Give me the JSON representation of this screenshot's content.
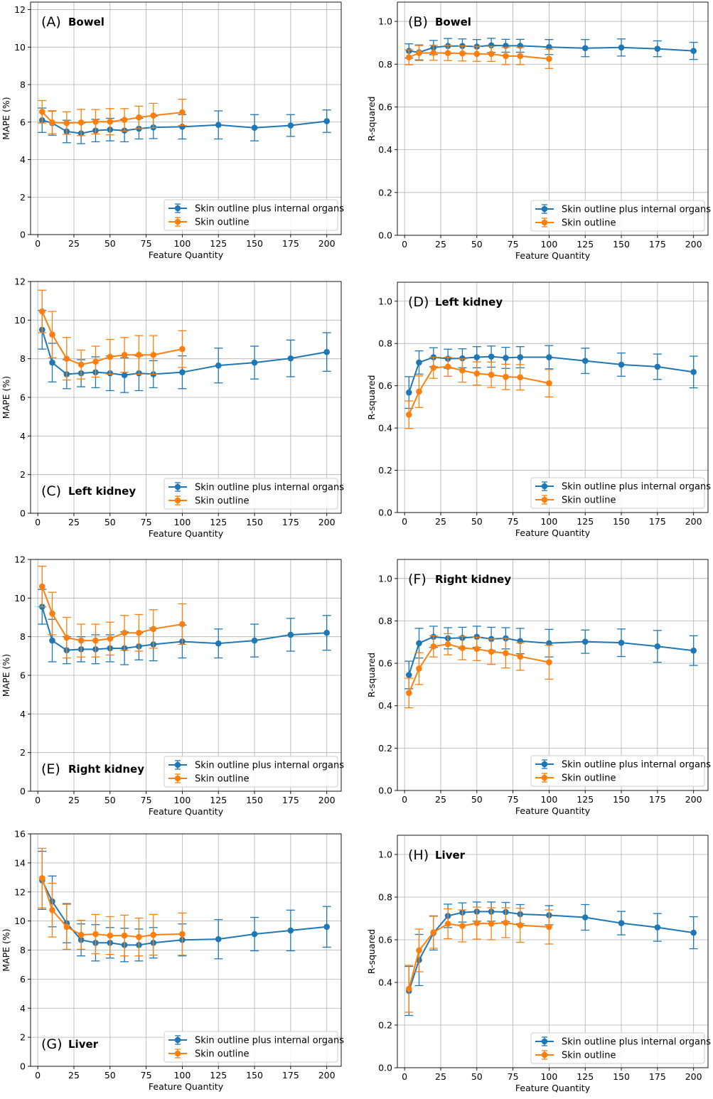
{
  "colors": {
    "blue": "#1f77b4",
    "orange": "#ff7f0e",
    "grid": "#b0b0b0"
  },
  "legend": {
    "series_a": "Skin outline plus internal organs",
    "series_b": "Skin outline"
  },
  "chart_data": [
    {
      "type": "line",
      "panel": "(A)",
      "title": "Bowel",
      "xlabel": "Feature Quantity",
      "ylabel": "MAPE (%)",
      "xlim": [
        -5,
        210
      ],
      "ylim": [
        0,
        12.4
      ],
      "xticks": [
        0,
        25,
        50,
        75,
        100,
        125,
        150,
        175,
        200
      ],
      "yticks": [
        0,
        2,
        4,
        6,
        8,
        10,
        12
      ],
      "label_position": "top-left",
      "legend_position": "lower-right",
      "grid": true,
      "series": [
        {
          "name": "Skin outline plus internal organs",
          "x": [
            3,
            10,
            20,
            30,
            40,
            50,
            60,
            70,
            80,
            100,
            125,
            150,
            175,
            200
          ],
          "y": [
            6.1,
            5.95,
            5.5,
            5.4,
            5.55,
            5.6,
            5.55,
            5.65,
            5.72,
            5.75,
            5.85,
            5.7,
            5.82,
            6.05
          ],
          "err": [
            0.65,
            0.65,
            0.6,
            0.55,
            0.6,
            0.6,
            0.6,
            0.55,
            0.6,
            0.65,
            0.75,
            0.7,
            0.58,
            0.6
          ]
        },
        {
          "name": "Skin outline",
          "x": [
            3,
            10,
            20,
            30,
            40,
            50,
            60,
            70,
            80,
            100
          ],
          "y": [
            6.55,
            5.98,
            5.95,
            5.98,
            6.02,
            6.02,
            6.12,
            6.25,
            6.35,
            6.52
          ],
          "err": [
            0.6,
            0.6,
            0.6,
            0.7,
            0.65,
            0.7,
            0.6,
            0.6,
            0.65,
            0.7
          ]
        }
      ]
    },
    {
      "type": "line",
      "panel": "(B)",
      "title": "Bowel",
      "xlabel": "Feature Quantity",
      "ylabel": "R-squared",
      "xlim": [
        -5,
        210
      ],
      "ylim": [
        0,
        1.09
      ],
      "xticks": [
        0,
        25,
        50,
        75,
        100,
        125,
        150,
        175,
        200
      ],
      "yticks": [
        0.0,
        0.2,
        0.4,
        0.6,
        0.8,
        1.0
      ],
      "label_position": "top-left",
      "legend_position": "lower-right",
      "grid": true,
      "series": [
        {
          "name": "Skin outline plus internal organs",
          "x": [
            3,
            10,
            20,
            30,
            40,
            50,
            60,
            70,
            80,
            100,
            125,
            150,
            175,
            200
          ],
          "y": [
            0.862,
            0.855,
            0.878,
            0.885,
            0.885,
            0.882,
            0.888,
            0.886,
            0.886,
            0.88,
            0.875,
            0.878,
            0.872,
            0.862
          ],
          "err": [
            0.033,
            0.035,
            0.033,
            0.035,
            0.033,
            0.033,
            0.033,
            0.03,
            0.03,
            0.035,
            0.04,
            0.04,
            0.037,
            0.04
          ]
        },
        {
          "name": "Skin outline",
          "x": [
            3,
            10,
            20,
            30,
            40,
            50,
            60,
            70,
            80,
            100
          ],
          "y": [
            0.832,
            0.852,
            0.853,
            0.852,
            0.85,
            0.848,
            0.848,
            0.838,
            0.838,
            0.825
          ],
          "err": [
            0.035,
            0.035,
            0.035,
            0.035,
            0.035,
            0.035,
            0.035,
            0.04,
            0.04,
            0.045
          ]
        }
      ]
    },
    {
      "type": "line",
      "panel": "(C)",
      "title": "Left kidney",
      "xlabel": "Feature Quantity",
      "ylabel": "MAPE (%)",
      "xlim": [
        -5,
        210
      ],
      "ylim": [
        0,
        12
      ],
      "xticks": [
        0,
        25,
        50,
        75,
        100,
        125,
        150,
        175,
        200
      ],
      "yticks": [
        0,
        2,
        4,
        6,
        8,
        10,
        12
      ],
      "label_position": "bottom-left",
      "legend_position": "lower-right",
      "grid": true,
      "series": [
        {
          "name": "Skin outline plus internal organs",
          "x": [
            3,
            10,
            20,
            30,
            40,
            50,
            60,
            70,
            80,
            100,
            125,
            150,
            175,
            200
          ],
          "y": [
            9.5,
            7.8,
            7.2,
            7.25,
            7.3,
            7.25,
            7.15,
            7.25,
            7.2,
            7.3,
            7.65,
            7.8,
            8.02,
            8.35
          ],
          "err": [
            1.0,
            1.0,
            0.75,
            0.7,
            0.8,
            0.9,
            0.9,
            0.9,
            0.7,
            0.85,
            0.9,
            0.85,
            0.95,
            1.0
          ]
        },
        {
          "name": "Skin outline",
          "x": [
            3,
            10,
            20,
            30,
            40,
            50,
            60,
            70,
            80,
            100
          ],
          "y": [
            10.45,
            9.25,
            8.0,
            7.7,
            7.85,
            8.1,
            8.2,
            8.2,
            8.2,
            8.5
          ],
          "err": [
            1.1,
            1.2,
            1.1,
            0.75,
            0.8,
            0.9,
            0.9,
            1.0,
            1.0,
            0.95
          ]
        }
      ]
    },
    {
      "type": "line",
      "panel": "(D)",
      "title": "Left kidney",
      "xlabel": "Feature Quantity",
      "ylabel": "R-squared",
      "xlim": [
        -5,
        210
      ],
      "ylim": [
        0,
        1.09
      ],
      "xticks": [
        0,
        25,
        50,
        75,
        100,
        125,
        150,
        175,
        200
      ],
      "yticks": [
        0.0,
        0.2,
        0.4,
        0.6,
        0.8,
        1.0
      ],
      "label_position": "top-left",
      "legend_position": "lower-right",
      "grid": true,
      "series": [
        {
          "name": "Skin outline plus internal organs",
          "x": [
            3,
            10,
            20,
            30,
            40,
            50,
            60,
            70,
            80,
            100,
            125,
            150,
            175,
            200
          ],
          "y": [
            0.568,
            0.71,
            0.735,
            0.728,
            0.73,
            0.735,
            0.738,
            0.732,
            0.735,
            0.735,
            0.718,
            0.7,
            0.69,
            0.665
          ],
          "err": [
            0.075,
            0.055,
            0.045,
            0.045,
            0.045,
            0.05,
            0.05,
            0.05,
            0.05,
            0.055,
            0.06,
            0.055,
            0.06,
            0.075
          ]
        },
        {
          "name": "Skin outline",
          "x": [
            3,
            10,
            20,
            30,
            40,
            50,
            60,
            70,
            80,
            100
          ],
          "y": [
            0.463,
            0.572,
            0.685,
            0.69,
            0.672,
            0.658,
            0.652,
            0.642,
            0.64,
            0.612
          ],
          "err": [
            0.065,
            0.075,
            0.05,
            0.045,
            0.055,
            0.055,
            0.06,
            0.06,
            0.06,
            0.065
          ]
        }
      ]
    },
    {
      "type": "line",
      "panel": "(E)",
      "title": "Right kidney",
      "xlabel": "Feature Quantity",
      "ylabel": "MAPE (%)",
      "xlim": [
        -5,
        210
      ],
      "ylim": [
        0,
        12
      ],
      "xticks": [
        0,
        25,
        50,
        75,
        100,
        125,
        150,
        175,
        200
      ],
      "yticks": [
        0,
        2,
        4,
        6,
        8,
        10,
        12
      ],
      "label_position": "bottom-left",
      "legend_position": "lower-right",
      "grid": true,
      "series": [
        {
          "name": "Skin outline plus internal organs",
          "x": [
            3,
            10,
            20,
            30,
            40,
            50,
            60,
            70,
            80,
            100,
            125,
            150,
            175,
            200
          ],
          "y": [
            9.55,
            7.8,
            7.3,
            7.35,
            7.35,
            7.4,
            7.4,
            7.5,
            7.6,
            7.75,
            7.65,
            7.8,
            8.1,
            8.2
          ],
          "err": [
            0.9,
            1.1,
            0.7,
            0.65,
            0.75,
            0.7,
            0.85,
            0.7,
            0.85,
            0.85,
            0.75,
            0.85,
            0.85,
            0.9
          ]
        },
        {
          "name": "Skin outline",
          "x": [
            3,
            10,
            20,
            30,
            40,
            50,
            60,
            70,
            80,
            100
          ],
          "y": [
            10.6,
            9.2,
            7.95,
            7.8,
            7.8,
            7.9,
            8.2,
            8.2,
            8.4,
            8.65
          ],
          "err": [
            1.05,
            1.1,
            1.05,
            0.85,
            0.85,
            0.85,
            0.9,
            0.95,
            1.0,
            1.05
          ]
        }
      ]
    },
    {
      "type": "line",
      "panel": "(F)",
      "title": "Right kidney",
      "xlabel": "Feature Quantity",
      "ylabel": "R-squared",
      "xlim": [
        -5,
        210
      ],
      "ylim": [
        0,
        1.09
      ],
      "xticks": [
        0,
        25,
        50,
        75,
        100,
        125,
        150,
        175,
        200
      ],
      "yticks": [
        0.0,
        0.2,
        0.4,
        0.6,
        0.8,
        1.0
      ],
      "label_position": "top-left",
      "legend_position": "lower-right",
      "grid": true,
      "series": [
        {
          "name": "Skin outline plus internal organs",
          "x": [
            3,
            10,
            20,
            30,
            40,
            50,
            60,
            70,
            80,
            100,
            125,
            150,
            175,
            200
          ],
          "y": [
            0.545,
            0.695,
            0.725,
            0.718,
            0.72,
            0.725,
            0.715,
            0.718,
            0.705,
            0.695,
            0.702,
            0.697,
            0.68,
            0.66
          ],
          "err": [
            0.065,
            0.07,
            0.05,
            0.05,
            0.05,
            0.05,
            0.055,
            0.05,
            0.06,
            0.065,
            0.055,
            0.065,
            0.075,
            0.07
          ]
        },
        {
          "name": "Skin outline",
          "x": [
            3,
            10,
            20,
            30,
            40,
            50,
            60,
            70,
            80,
            100
          ],
          "y": [
            0.46,
            0.575,
            0.68,
            0.69,
            0.672,
            0.668,
            0.655,
            0.648,
            0.632,
            0.605
          ],
          "err": [
            0.07,
            0.075,
            0.05,
            0.05,
            0.055,
            0.055,
            0.06,
            0.07,
            0.065,
            0.08
          ]
        }
      ]
    },
    {
      "type": "line",
      "panel": "(G)",
      "title": "Liver",
      "xlabel": "Feature Quantity",
      "ylabel": "MAPE (%)",
      "xlim": [
        -5,
        210
      ],
      "ylim": [
        0,
        16
      ],
      "xticks": [
        0,
        25,
        50,
        75,
        100,
        125,
        150,
        175,
        200
      ],
      "yticks": [
        0,
        2,
        4,
        6,
        8,
        10,
        12,
        14,
        16
      ],
      "label_position": "bottom-left",
      "legend_position": "lower-right",
      "grid": true,
      "series": [
        {
          "name": "Skin outline plus internal organs",
          "x": [
            3,
            10,
            20,
            30,
            40,
            50,
            60,
            70,
            80,
            100,
            125,
            150,
            175,
            200
          ],
          "y": [
            12.8,
            11.35,
            9.85,
            8.7,
            8.5,
            8.5,
            8.35,
            8.35,
            8.5,
            8.7,
            8.75,
            9.1,
            9.35,
            9.6
          ],
          "err": [
            2.0,
            1.75,
            1.35,
            1.1,
            1.25,
            1.05,
            1.15,
            1.1,
            1.05,
            1.1,
            1.35,
            1.15,
            1.4,
            1.4
          ]
        },
        {
          "name": "Skin outline",
          "x": [
            3,
            10,
            20,
            30,
            40,
            50,
            60,
            70,
            80,
            100
          ],
          "y": [
            12.95,
            10.75,
            9.6,
            9.05,
            9.1,
            9.0,
            9.0,
            8.9,
            9.05,
            9.1
          ],
          "err": [
            2.05,
            1.85,
            1.55,
            1.0,
            1.35,
            1.3,
            1.4,
            1.3,
            1.4,
            1.45
          ]
        }
      ]
    },
    {
      "type": "line",
      "panel": "(H)",
      "title": "Liver",
      "xlabel": "Feature Quantity",
      "ylabel": "R-squared",
      "xlim": [
        -5,
        210
      ],
      "ylim": [
        0,
        1.09
      ],
      "xticks": [
        0,
        25,
        50,
        75,
        100,
        125,
        150,
        175,
        200
      ],
      "yticks": [
        0.0,
        0.2,
        0.4,
        0.6,
        0.8,
        1.0
      ],
      "label_position": "top-left",
      "legend_position": "lower-right",
      "grid": true,
      "series": [
        {
          "name": "Skin outline plus internal organs",
          "x": [
            3,
            10,
            20,
            30,
            40,
            50,
            60,
            70,
            80,
            100,
            125,
            150,
            175,
            200
          ],
          "y": [
            0.36,
            0.505,
            0.632,
            0.712,
            0.728,
            0.732,
            0.732,
            0.73,
            0.72,
            0.715,
            0.705,
            0.678,
            0.658,
            0.633
          ],
          "err": [
            0.115,
            0.12,
            0.08,
            0.055,
            0.045,
            0.045,
            0.045,
            0.045,
            0.045,
            0.045,
            0.06,
            0.055,
            0.065,
            0.075
          ]
        },
        {
          "name": "Skin outline",
          "x": [
            3,
            10,
            20,
            30,
            40,
            50,
            60,
            70,
            80,
            100
          ],
          "y": [
            0.37,
            0.55,
            0.635,
            0.675,
            0.665,
            0.678,
            0.675,
            0.68,
            0.668,
            0.66
          ],
          "err": [
            0.11,
            0.1,
            0.075,
            0.07,
            0.075,
            0.075,
            0.075,
            0.07,
            0.08,
            0.08
          ]
        }
      ]
    }
  ]
}
